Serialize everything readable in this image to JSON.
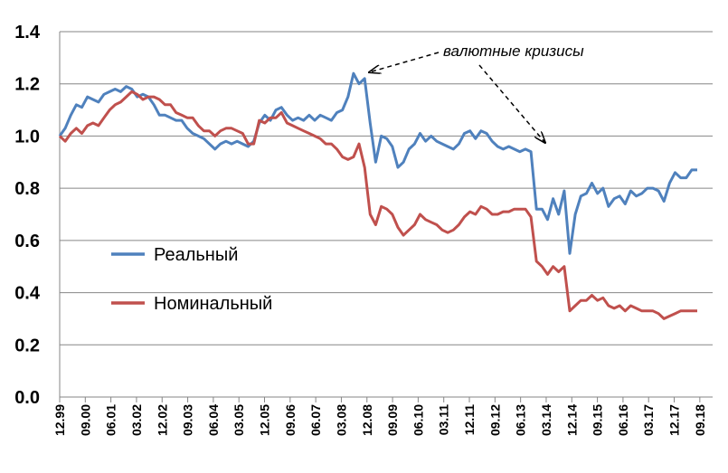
{
  "chart_data": {
    "type": "line",
    "title": "",
    "xlabel": "",
    "ylabel": "",
    "ylim": [
      0,
      1.4
    ],
    "yticks": [
      "0.0",
      "0.2",
      "0.4",
      "0.6",
      "0.8",
      "1.0",
      "1.2",
      "1.4"
    ],
    "xticks": [
      "12.99",
      "09.00",
      "06.01",
      "03.02",
      "12.02",
      "09.03",
      "06.04",
      "03.05",
      "12.05",
      "09.06",
      "06.07",
      "03.08",
      "12.08",
      "09.09",
      "06.10",
      "03.11",
      "12.11",
      "09.12",
      "06.13",
      "03.14",
      "12.14",
      "09.15",
      "06.16",
      "03.17",
      "12.17",
      "09.18"
    ],
    "grid": true,
    "legend_placement": "left-middle",
    "annotation": "валютные кризисы",
    "series": [
      {
        "name": "Реальный",
        "color": "#4f81bd",
        "points": [
          [
            0,
            1.0
          ],
          [
            1,
            1.03
          ],
          [
            2,
            1.08
          ],
          [
            3,
            1.12
          ],
          [
            4,
            1.11
          ],
          [
            5,
            1.15
          ],
          [
            6,
            1.14
          ],
          [
            7,
            1.13
          ],
          [
            8,
            1.16
          ],
          [
            9,
            1.17
          ],
          [
            10,
            1.18
          ],
          [
            11,
            1.17
          ],
          [
            12,
            1.19
          ],
          [
            13,
            1.18
          ],
          [
            14,
            1.15
          ],
          [
            15,
            1.16
          ],
          [
            16,
            1.15
          ],
          [
            17,
            1.12
          ],
          [
            18,
            1.08
          ],
          [
            19,
            1.08
          ],
          [
            20,
            1.07
          ],
          [
            21,
            1.06
          ],
          [
            22,
            1.06
          ],
          [
            23,
            1.03
          ],
          [
            24,
            1.01
          ],
          [
            25,
            1.0
          ],
          [
            26,
            0.99
          ],
          [
            27,
            0.97
          ],
          [
            28,
            0.95
          ],
          [
            29,
            0.97
          ],
          [
            30,
            0.98
          ],
          [
            31,
            0.97
          ],
          [
            32,
            0.98
          ],
          [
            33,
            0.97
          ],
          [
            34,
            0.96
          ],
          [
            35,
            0.98
          ],
          [
            36,
            1.05
          ],
          [
            37,
            1.08
          ],
          [
            38,
            1.06
          ],
          [
            39,
            1.1
          ],
          [
            40,
            1.11
          ],
          [
            41,
            1.08
          ],
          [
            42,
            1.06
          ],
          [
            43,
            1.07
          ],
          [
            44,
            1.06
          ],
          [
            45,
            1.08
          ],
          [
            46,
            1.06
          ],
          [
            47,
            1.08
          ],
          [
            48,
            1.07
          ],
          [
            49,
            1.06
          ],
          [
            50,
            1.09
          ],
          [
            51,
            1.1
          ],
          [
            52,
            1.15
          ],
          [
            53,
            1.24
          ],
          [
            54,
            1.2
          ],
          [
            55,
            1.22
          ],
          [
            56,
            1.05
          ],
          [
            57,
            0.9
          ],
          [
            58,
            1.0
          ],
          [
            59,
            0.99
          ],
          [
            60,
            0.96
          ],
          [
            61,
            0.88
          ],
          [
            62,
            0.9
          ],
          [
            63,
            0.95
          ],
          [
            64,
            0.97
          ],
          [
            65,
            1.01
          ],
          [
            66,
            0.98
          ],
          [
            67,
            1.0
          ],
          [
            68,
            0.98
          ],
          [
            69,
            0.97
          ],
          [
            70,
            0.96
          ],
          [
            71,
            0.95
          ],
          [
            72,
            0.97
          ],
          [
            73,
            1.01
          ],
          [
            74,
            1.02
          ],
          [
            75,
            0.99
          ],
          [
            76,
            1.02
          ],
          [
            77,
            1.01
          ],
          [
            78,
            0.98
          ],
          [
            79,
            0.96
          ],
          [
            80,
            0.95
          ],
          [
            81,
            0.96
          ],
          [
            82,
            0.95
          ],
          [
            83,
            0.94
          ],
          [
            84,
            0.95
          ],
          [
            85,
            0.94
          ],
          [
            86,
            0.72
          ],
          [
            87,
            0.72
          ],
          [
            88,
            0.68
          ],
          [
            89,
            0.76
          ],
          [
            90,
            0.7
          ],
          [
            91,
            0.79
          ],
          [
            92,
            0.55
          ],
          [
            93,
            0.7
          ],
          [
            94,
            0.77
          ],
          [
            95,
            0.78
          ],
          [
            96,
            0.82
          ],
          [
            97,
            0.78
          ],
          [
            98,
            0.8
          ],
          [
            99,
            0.73
          ],
          [
            100,
            0.76
          ],
          [
            101,
            0.77
          ],
          [
            102,
            0.74
          ],
          [
            103,
            0.79
          ],
          [
            104,
            0.77
          ],
          [
            105,
            0.78
          ],
          [
            106,
            0.8
          ],
          [
            107,
            0.8
          ],
          [
            108,
            0.79
          ],
          [
            109,
            0.75
          ],
          [
            110,
            0.82
          ],
          [
            111,
            0.86
          ],
          [
            112,
            0.84
          ],
          [
            113,
            0.84
          ],
          [
            114,
            0.87
          ],
          [
            115,
            0.87
          ]
        ]
      },
      {
        "name": "Номинальный",
        "color": "#c0504d",
        "points": [
          [
            0,
            1.0
          ],
          [
            1,
            0.98
          ],
          [
            2,
            1.01
          ],
          [
            3,
            1.03
          ],
          [
            4,
            1.01
          ],
          [
            5,
            1.04
          ],
          [
            6,
            1.05
          ],
          [
            7,
            1.04
          ],
          [
            8,
            1.07
          ],
          [
            9,
            1.1
          ],
          [
            10,
            1.12
          ],
          [
            11,
            1.13
          ],
          [
            12,
            1.15
          ],
          [
            13,
            1.17
          ],
          [
            14,
            1.16
          ],
          [
            15,
            1.14
          ],
          [
            16,
            1.15
          ],
          [
            17,
            1.15
          ],
          [
            18,
            1.14
          ],
          [
            19,
            1.12
          ],
          [
            20,
            1.12
          ],
          [
            21,
            1.09
          ],
          [
            22,
            1.08
          ],
          [
            23,
            1.07
          ],
          [
            24,
            1.07
          ],
          [
            25,
            1.04
          ],
          [
            26,
            1.02
          ],
          [
            27,
            1.02
          ],
          [
            28,
            1.0
          ],
          [
            29,
            1.02
          ],
          [
            30,
            1.03
          ],
          [
            31,
            1.03
          ],
          [
            32,
            1.02
          ],
          [
            33,
            1.01
          ],
          [
            34,
            0.97
          ],
          [
            35,
            0.97
          ],
          [
            36,
            1.06
          ],
          [
            37,
            1.05
          ],
          [
            38,
            1.07
          ],
          [
            39,
            1.07
          ],
          [
            40,
            1.09
          ],
          [
            41,
            1.05
          ],
          [
            42,
            1.04
          ],
          [
            43,
            1.03
          ],
          [
            44,
            1.02
          ],
          [
            45,
            1.01
          ],
          [
            46,
            1.0
          ],
          [
            47,
            0.99
          ],
          [
            48,
            0.97
          ],
          [
            49,
            0.97
          ],
          [
            50,
            0.95
          ],
          [
            51,
            0.92
          ],
          [
            52,
            0.91
          ],
          [
            53,
            0.92
          ],
          [
            54,
            0.97
          ],
          [
            55,
            0.88
          ],
          [
            56,
            0.7
          ],
          [
            57,
            0.66
          ],
          [
            58,
            0.73
          ],
          [
            59,
            0.72
          ],
          [
            60,
            0.7
          ],
          [
            61,
            0.65
          ],
          [
            62,
            0.62
          ],
          [
            63,
            0.64
          ],
          [
            64,
            0.66
          ],
          [
            65,
            0.7
          ],
          [
            66,
            0.68
          ],
          [
            67,
            0.67
          ],
          [
            68,
            0.66
          ],
          [
            69,
            0.64
          ],
          [
            70,
            0.63
          ],
          [
            71,
            0.64
          ],
          [
            72,
            0.66
          ],
          [
            73,
            0.69
          ],
          [
            74,
            0.71
          ],
          [
            75,
            0.7
          ],
          [
            76,
            0.73
          ],
          [
            77,
            0.72
          ],
          [
            78,
            0.7
          ],
          [
            79,
            0.7
          ],
          [
            80,
            0.71
          ],
          [
            81,
            0.71
          ],
          [
            82,
            0.72
          ],
          [
            83,
            0.72
          ],
          [
            84,
            0.72
          ],
          [
            85,
            0.69
          ],
          [
            86,
            0.52
          ],
          [
            87,
            0.5
          ],
          [
            88,
            0.47
          ],
          [
            89,
            0.5
          ],
          [
            90,
            0.48
          ],
          [
            91,
            0.5
          ],
          [
            92,
            0.33
          ],
          [
            93,
            0.35
          ],
          [
            94,
            0.37
          ],
          [
            95,
            0.37
          ],
          [
            96,
            0.39
          ],
          [
            97,
            0.37
          ],
          [
            98,
            0.38
          ],
          [
            99,
            0.35
          ],
          [
            100,
            0.34
          ],
          [
            101,
            0.35
          ],
          [
            102,
            0.33
          ],
          [
            103,
            0.35
          ],
          [
            104,
            0.34
          ],
          [
            105,
            0.33
          ],
          [
            106,
            0.33
          ],
          [
            107,
            0.33
          ],
          [
            108,
            0.32
          ],
          [
            109,
            0.3
          ],
          [
            110,
            0.31
          ],
          [
            111,
            0.32
          ],
          [
            112,
            0.33
          ],
          [
            113,
            0.33
          ],
          [
            114,
            0.33
          ],
          [
            115,
            0.33
          ]
        ]
      }
    ]
  }
}
